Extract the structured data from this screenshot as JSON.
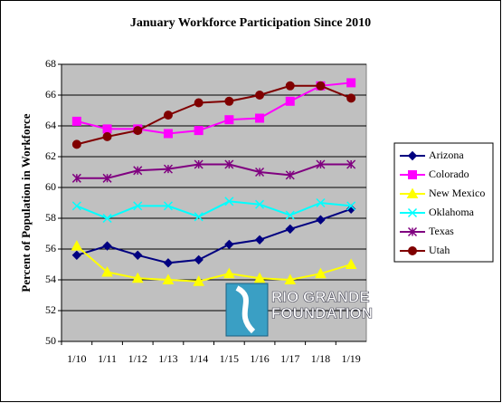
{
  "chart_data": {
    "type": "line",
    "title": "January Workforce Participation Since 2010",
    "y_label": "Percent of Population in Workforce",
    "categories": [
      "1/10",
      "1/11",
      "1/12",
      "1/13",
      "1/14",
      "1/15",
      "1/16",
      "1/17",
      "1/18",
      "1/19"
    ],
    "series": [
      {
        "name": "Arizona",
        "color": "#000080",
        "marker": "diamond",
        "values": [
          55.6,
          56.2,
          55.6,
          55.1,
          55.3,
          56.3,
          56.6,
          57.3,
          57.9,
          58.6
        ]
      },
      {
        "name": "Colorado",
        "color": "#ff00ff",
        "marker": "square",
        "values": [
          64.3,
          63.8,
          63.8,
          63.5,
          63.7,
          64.4,
          64.5,
          65.6,
          66.6,
          66.8
        ]
      },
      {
        "name": "New Mexico",
        "color": "#ffff00",
        "marker": "triangle",
        "values": [
          56.2,
          54.5,
          54.1,
          54.0,
          53.9,
          54.4,
          54.1,
          54.0,
          54.4,
          55.0
        ]
      },
      {
        "name": "Oklahoma",
        "color": "#00ffff",
        "marker": "x",
        "values": [
          58.8,
          58.0,
          58.8,
          58.8,
          58.1,
          59.1,
          58.9,
          58.2,
          59.0,
          58.8
        ]
      },
      {
        "name": "Texas",
        "color": "#800080",
        "marker": "star",
        "values": [
          60.6,
          60.6,
          61.1,
          61.2,
          61.5,
          61.5,
          61.0,
          60.8,
          61.5,
          61.5
        ]
      },
      {
        "name": "Utah",
        "color": "#800000",
        "marker": "circle",
        "values": [
          62.8,
          63.3,
          63.7,
          64.7,
          65.5,
          65.6,
          66.0,
          66.6,
          66.6,
          65.8
        ]
      }
    ],
    "ylim": [
      50,
      68
    ],
    "yticks": [
      50,
      52,
      54,
      56,
      58,
      60,
      62,
      64,
      66,
      68
    ],
    "plot_background": "#c0c0c0",
    "legend": "right",
    "annotations": [
      "RIO GRANDE",
      "FOUNDATION"
    ]
  }
}
